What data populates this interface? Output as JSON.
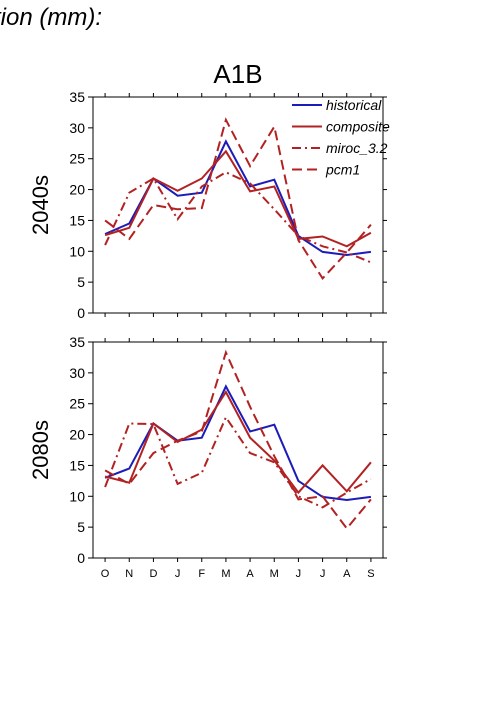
{
  "page": {
    "title": "tion (mm):"
  },
  "colors": {
    "historical": "#1c1cb8",
    "model": "#b22222",
    "axis": "#000000"
  },
  "chart_data": [
    {
      "type": "line",
      "title": "A1B",
      "ylabel": "2040s",
      "xlabel": "",
      "ylim": [
        0,
        35
      ],
      "yticks": [
        0,
        5,
        10,
        15,
        20,
        25,
        30,
        35
      ],
      "categories": [
        "O",
        "N",
        "D",
        "J",
        "F",
        "M",
        "A",
        "M",
        "J",
        "J",
        "A",
        "S"
      ],
      "legend": {
        "placement": "top-right",
        "entries": [
          "historical",
          "composite",
          "miroc_3.2",
          "pcm1"
        ]
      },
      "series": [
        {
          "name": "historical",
          "style": "solid",
          "color": "#1c1cb8",
          "values": [
            12.8,
            14.5,
            21.8,
            19.0,
            19.5,
            27.8,
            20.5,
            21.6,
            12.5,
            9.9,
            9.4,
            9.9
          ]
        },
        {
          "name": "composite",
          "style": "solid",
          "color": "#b22222",
          "values": [
            12.6,
            13.8,
            21.8,
            19.8,
            21.8,
            26.2,
            19.7,
            20.5,
            12.0,
            12.4,
            10.8,
            13.0
          ]
        },
        {
          "name": "miroc_3.2",
          "style": "dashdot",
          "color": "#b22222",
          "values": [
            11.0,
            19.5,
            21.8,
            15.2,
            20.5,
            22.8,
            21.0,
            16.8,
            12.5,
            10.8,
            9.8,
            8.2
          ]
        },
        {
          "name": "pcm1",
          "style": "dash",
          "color": "#b22222",
          "values": [
            15.0,
            12.0,
            17.5,
            16.8,
            17.0,
            31.3,
            23.8,
            30.2,
            11.8,
            5.6,
            9.8,
            14.3
          ]
        }
      ]
    },
    {
      "type": "line",
      "title": "",
      "ylabel": "2080s",
      "xlabel": "",
      "ylim": [
        0,
        35
      ],
      "yticks": [
        0,
        5,
        10,
        15,
        20,
        25,
        30,
        35
      ],
      "categories": [
        "O",
        "N",
        "D",
        "J",
        "F",
        "M",
        "A",
        "M",
        "J",
        "J",
        "A",
        "S"
      ],
      "series": [
        {
          "name": "historical",
          "style": "solid",
          "color": "#1c1cb8",
          "values": [
            13.0,
            14.5,
            21.8,
            19.0,
            19.5,
            27.8,
            20.5,
            21.6,
            12.5,
            9.9,
            9.4,
            9.9
          ]
        },
        {
          "name": "composite",
          "style": "solid",
          "color": "#b22222",
          "values": [
            13.2,
            12.2,
            21.8,
            18.8,
            20.8,
            26.9,
            19.5,
            15.8,
            10.6,
            15.0,
            10.8,
            15.5
          ]
        },
        {
          "name": "miroc_3.2",
          "style": "dashdot",
          "color": "#b22222",
          "values": [
            11.5,
            21.8,
            21.7,
            12.0,
            13.8,
            22.8,
            17.0,
            15.5,
            10.0,
            8.2,
            10.6,
            12.8
          ]
        },
        {
          "name": "pcm1",
          "style": "dash",
          "color": "#b22222",
          "values": [
            14.2,
            12.0,
            17.0,
            19.0,
            20.5,
            33.3,
            24.5,
            16.5,
            9.5,
            10.0,
            4.8,
            9.5
          ]
        }
      ]
    }
  ]
}
